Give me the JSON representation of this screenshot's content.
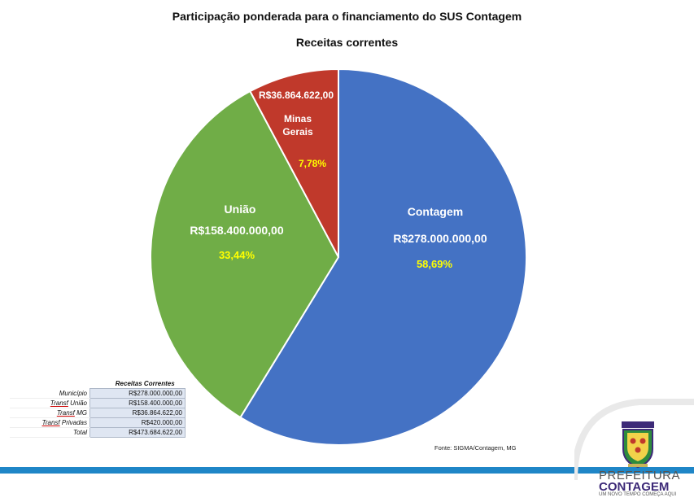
{
  "chart_data": {
    "type": "pie",
    "title": "Participação ponderada para o financiamento do SUS Contagem",
    "subtitle": "Receitas correntes",
    "series": [
      {
        "name": "Receitas correntes",
        "slices": [
          {
            "label": "Contagem",
            "value": 278000000.0,
            "value_text": "R$278.000.000,00",
            "percent_text": "58,69%",
            "color": "#4472c4"
          },
          {
            "label": "União",
            "value": 158400000.0,
            "value_text": "R$158.400.000,00",
            "percent_text": "33,44%",
            "color": "#70ad47"
          },
          {
            "label": "Minas Gerais",
            "value": 36864622.0,
            "value_text": "R$36.864.622,00",
            "percent_text": "7,78%",
            "color": "#c0392b"
          }
        ]
      }
    ]
  },
  "table": {
    "caption": "Receitas Correntes",
    "rows": [
      {
        "label_pre": "",
        "label_link": "",
        "label": "Município",
        "value": "R$278.000.000,00"
      },
      {
        "label_link": "Transf",
        "label": " União",
        "value": "R$158.400.000,00"
      },
      {
        "label_link": "Transf",
        "label": " MG",
        "value": "R$36.864.622,00"
      },
      {
        "label_link": "Transf",
        "label": " Privadas",
        "value": "R$420.000,00"
      },
      {
        "label_link": "",
        "label": "Total",
        "value": "R$473.684.622,00"
      }
    ]
  },
  "source": "Fonte: SIGMA/Contagem, MG",
  "logo": {
    "line1": "PREFEITURA",
    "line2": "CONTAGEM",
    "line3": "UM NOVO TEMPO COMEÇA AQUI",
    "purple": "#3d2a78",
    "red": "#c0392b",
    "green": "#2e8b3d"
  },
  "colors": {
    "percent": "#ffff00",
    "bar": "#1f86c7"
  }
}
